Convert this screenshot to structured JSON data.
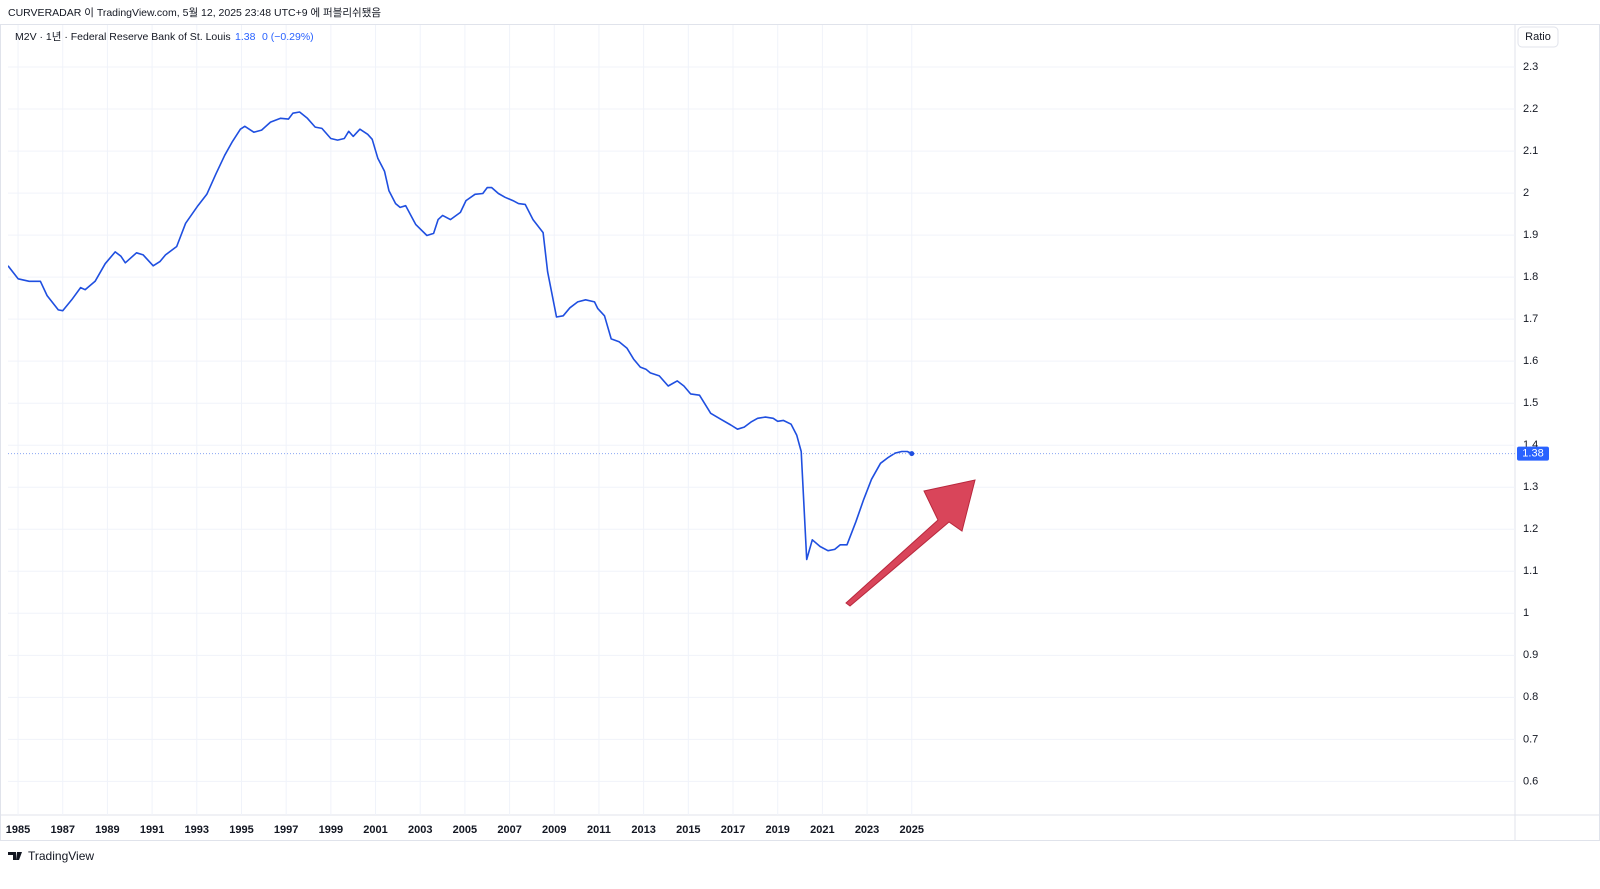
{
  "header": {
    "published": "CURVERADAR 이 TradingView.com, 5월 12, 2025 23:48 UTC+9 에 퍼블리쉬됐음",
    "change": "0 (−0.29%)",
    "scale_label": "Ratio"
  },
  "footer": {
    "brand": "TradingView"
  },
  "chart_data": {
    "type": "line",
    "x": [
      1984.55,
      1985.0,
      1985.5,
      1986.0,
      1986.3,
      1986.8,
      1987.0,
      1987.4,
      1987.8,
      1988.0,
      1988.45,
      1988.9,
      1989.35,
      1989.6,
      1989.8,
      1990.3,
      1990.6,
      1991.05,
      1991.35,
      1991.6,
      1992.1,
      1992.5,
      1993.05,
      1993.45,
      1993.85,
      1994.25,
      1994.6,
      1994.95,
      1995.15,
      1995.55,
      1995.9,
      1996.3,
      1996.75,
      1997.1,
      1997.3,
      1997.6,
      1997.95,
      1998.3,
      1998.6,
      1999.0,
      1999.3,
      1999.6,
      1999.8,
      2000.0,
      2000.3,
      2000.65,
      2000.85,
      2001.1,
      2001.4,
      2001.6,
      2001.9,
      2002.1,
      2002.35,
      2002.8,
      2003.3,
      2003.6,
      2003.8,
      2004.0,
      2004.35,
      2004.8,
      2005.05,
      2005.45,
      2005.8,
      2006.0,
      2006.2,
      2006.5,
      2006.8,
      2007.15,
      2007.4,
      2007.7,
      2008.05,
      2008.5,
      2008.7,
      2009.1,
      2009.4,
      2009.7,
      2010.05,
      2010.4,
      2010.8,
      2010.95,
      2011.25,
      2011.55,
      2011.9,
      2012.25,
      2012.55,
      2012.85,
      2013.1,
      2013.3,
      2013.7,
      2014.1,
      2014.5,
      2014.8,
      2015.1,
      2015.5,
      2016.0,
      2016.45,
      2016.9,
      2017.2,
      2017.5,
      2017.8,
      2018.1,
      2018.45,
      2018.8,
      2019.0,
      2019.25,
      2019.6,
      2019.85,
      2020.05,
      2020.3,
      2020.55,
      2020.9,
      2021.25,
      2021.55,
      2021.8,
      2022.1,
      2022.5,
      2022.85,
      2023.2,
      2023.6,
      2023.95,
      2024.25,
      2024.55,
      2024.8,
      2025.0
    ],
    "series": [
      {
        "name": "M2V · 1년 · Federal Reserve Bank of St. Louis",
        "color": "#1f4fe0",
        "values": [
          1.827,
          1.796,
          1.79,
          1.79,
          1.756,
          1.722,
          1.72,
          1.746,
          1.775,
          1.77,
          1.79,
          1.832,
          1.86,
          1.85,
          1.834,
          1.858,
          1.853,
          1.827,
          1.837,
          1.853,
          1.873,
          1.928,
          1.97,
          1.997,
          2.045,
          2.09,
          2.123,
          2.152,
          2.159,
          2.145,
          2.15,
          2.169,
          2.178,
          2.176,
          2.19,
          2.193,
          2.178,
          2.157,
          2.154,
          2.13,
          2.126,
          2.13,
          2.147,
          2.135,
          2.152,
          2.14,
          2.128,
          2.083,
          2.052,
          2.006,
          1.975,
          1.966,
          1.97,
          1.925,
          1.899,
          1.904,
          1.937,
          1.947,
          1.937,
          1.954,
          1.982,
          1.997,
          1.999,
          2.013,
          2.013,
          1.999,
          1.99,
          1.982,
          1.975,
          1.973,
          1.937,
          1.906,
          1.813,
          1.705,
          1.708,
          1.727,
          1.741,
          1.746,
          1.741,
          1.725,
          1.708,
          1.653,
          1.646,
          1.631,
          1.605,
          1.586,
          1.581,
          1.572,
          1.565,
          1.541,
          1.553,
          1.541,
          1.522,
          1.519,
          1.476,
          1.462,
          1.448,
          1.438,
          1.443,
          1.455,
          1.464,
          1.467,
          1.464,
          1.457,
          1.459,
          1.45,
          1.424,
          1.385,
          1.128,
          1.175,
          1.159,
          1.149,
          1.152,
          1.163,
          1.163,
          1.218,
          1.271,
          1.319,
          1.357,
          1.371,
          1.381,
          1.385,
          1.385,
          1.38
        ]
      }
    ],
    "xlim": [
      1984.55,
      2052
    ],
    "xticks": [
      1985,
      1987,
      1989,
      1991,
      1993,
      1995,
      1997,
      1999,
      2001,
      2003,
      2005,
      2007,
      2009,
      2011,
      2013,
      2015,
      2017,
      2019,
      2021,
      2023,
      2025
    ],
    "ylim": [
      0.52,
      2.4
    ],
    "yticks": [
      0.6,
      0.7,
      0.8,
      0.9,
      1,
      1.1,
      1.2,
      1.3,
      1.4,
      1.5,
      1.6,
      1.7,
      1.8,
      1.9,
      2,
      2.1,
      2.2,
      2.3
    ],
    "grid": true,
    "last_value_line_color": "#8aa6f2",
    "price_label_color": "#2962ff"
  }
}
